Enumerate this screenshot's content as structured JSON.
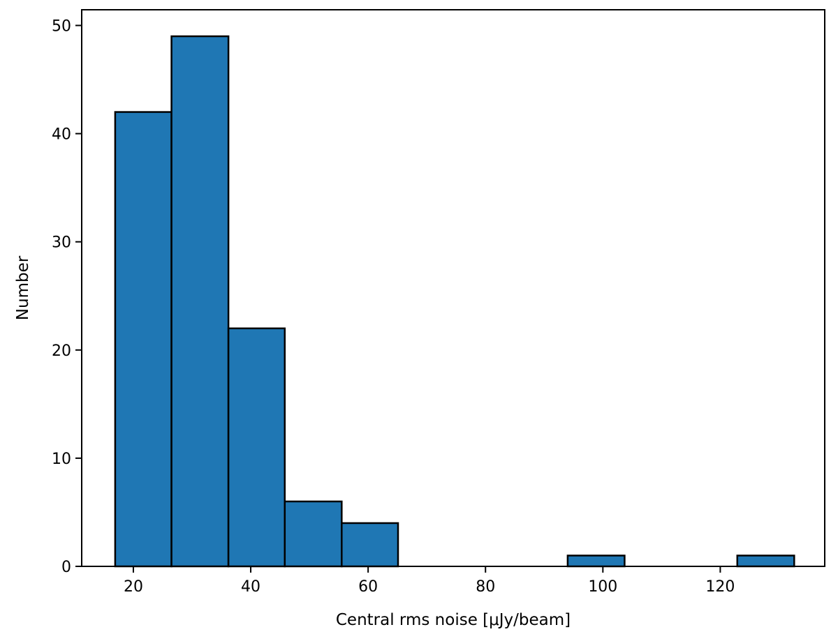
{
  "chart_data": {
    "type": "bar",
    "title": "",
    "xlabel": "Central rms noise [μJy/beam]",
    "ylabel": "Number",
    "xlim": [
      11.2,
      137.8
    ],
    "ylim": [
      0,
      51.45
    ],
    "xticks": [
      20,
      40,
      60,
      80,
      100,
      120
    ],
    "yticks": [
      0,
      10,
      20,
      30,
      40,
      50
    ],
    "grid": false,
    "bar_color": "#1f77b4",
    "edge_color": "#000000",
    "bins": [
      {
        "x0": 16.9,
        "x1": 26.5,
        "count": 42
      },
      {
        "x0": 26.5,
        "x1": 36.2,
        "count": 49
      },
      {
        "x0": 36.2,
        "x1": 45.8,
        "count": 22
      },
      {
        "x0": 45.8,
        "x1": 55.5,
        "count": 6
      },
      {
        "x0": 55.5,
        "x1": 65.1,
        "count": 4
      },
      {
        "x0": 65.1,
        "x1": 74.7,
        "count": 0
      },
      {
        "x0": 74.7,
        "x1": 84.4,
        "count": 0
      },
      {
        "x0": 84.4,
        "x1": 94.0,
        "count": 0
      },
      {
        "x0": 94.0,
        "x1": 103.7,
        "count": 1
      },
      {
        "x0": 103.7,
        "x1": 113.3,
        "count": 0
      },
      {
        "x0": 113.3,
        "x1": 122.9,
        "count": 0
      },
      {
        "x0": 122.9,
        "x1": 132.6,
        "count": 1
      }
    ]
  }
}
